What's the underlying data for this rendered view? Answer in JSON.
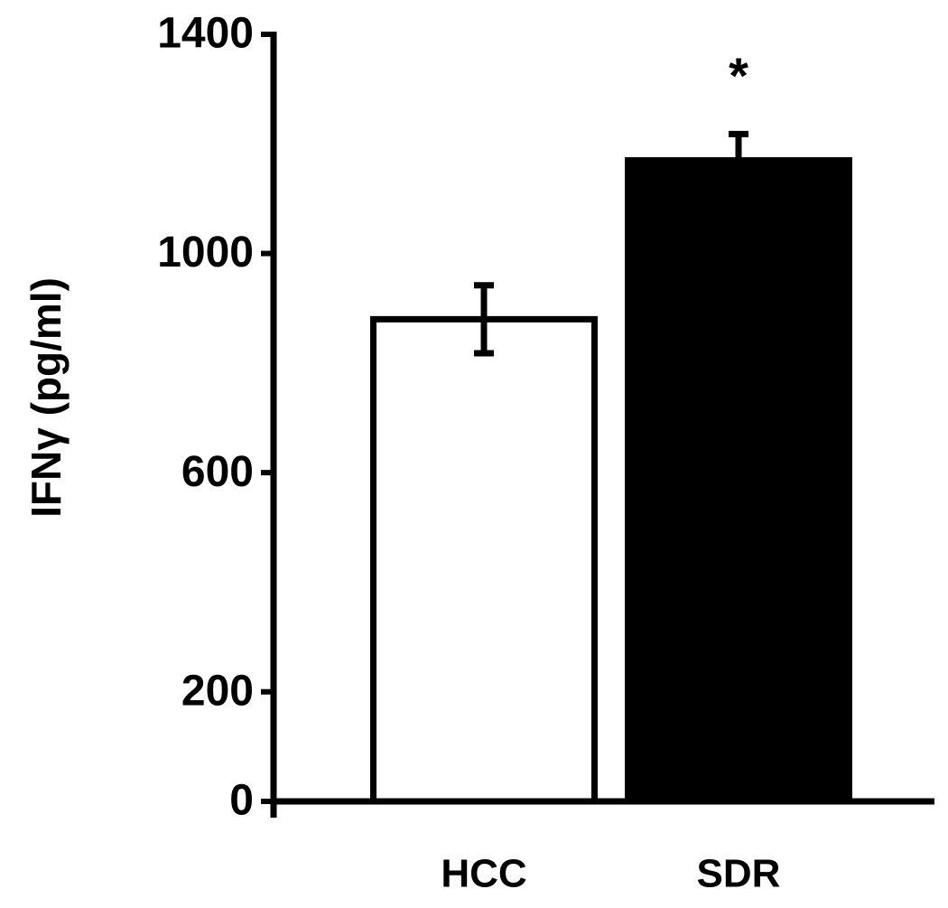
{
  "chart_data": {
    "type": "bar",
    "y_label": "IFNγ (pg/ml)",
    "categories": [
      "HCC",
      "SDR"
    ],
    "values": [
      880,
      1170
    ],
    "errors": [
      62,
      48
    ],
    "colors": [
      "#ffffff",
      "#000000"
    ],
    "annotations": [
      {
        "category": 1,
        "text": "*"
      }
    ],
    "ylim": [
      0,
      1400
    ],
    "yticks": [
      0,
      200,
      600,
      1000,
      1400
    ],
    "grid": false
  }
}
